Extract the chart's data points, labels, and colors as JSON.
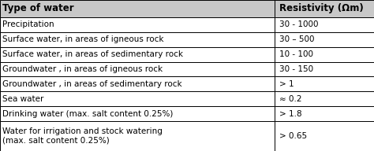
{
  "col1_header": "Type of water",
  "col2_header": "Resistivity (Ωm)",
  "rows": [
    [
      "Precipitation",
      "30 - 1000"
    ],
    [
      "Surface water, in areas of igneous rock",
      "30 – 500"
    ],
    [
      "Surface water, in areas of sedimentary rock",
      "10 - 100"
    ],
    [
      "Groundwater , in areas of igneous rock",
      "30 - 150"
    ],
    [
      "Groundwater , in areas of sedimentary rock",
      "> 1"
    ],
    [
      "Sea water",
      "≈ 0.2"
    ],
    [
      "Drinking water (max. salt content 0.25%)",
      "> 1.8"
    ],
    [
      "Water for irrigation and stock watering\n(max. salt content 0.25%)",
      "> 0.65"
    ]
  ],
  "bg_color": "#ffffff",
  "header_bg": "#c8c8c8",
  "border_color": "#000000",
  "font_size": 7.5,
  "header_font_size": 8.5,
  "col_split": 0.735,
  "fig_bg": "#d4d4d4"
}
